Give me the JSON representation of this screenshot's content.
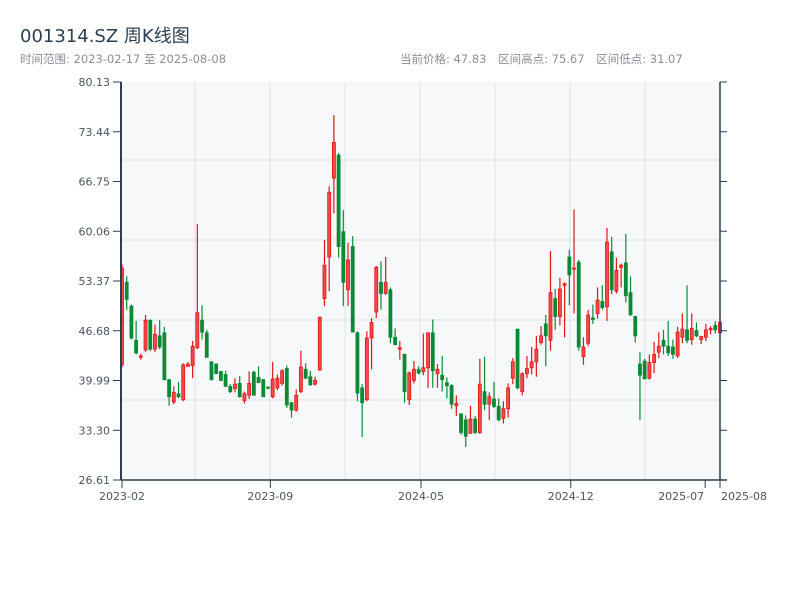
{
  "header": {
    "title": "001314.SZ 周K线图",
    "range_label": "时间范围: 2023-02-17 至 2025-08-08",
    "current_price": "当前价格: 47.83",
    "range_high": "区间高点: 75.67",
    "range_low": "区间低点: 31.07"
  },
  "colors": {
    "up": "#e0161a",
    "up_fill": "#f24a4a",
    "down": "#0b8a36",
    "plot_bg": "#f6f8fa",
    "axis": "#2c3e50",
    "grid": "#dfe3e8"
  },
  "chart_data": {
    "type": "candlestick",
    "title": "001314.SZ 周K线图",
    "period": "weekly",
    "ylim": [
      26.61,
      80.13
    ],
    "y_ticks": [
      "26.61",
      "33.30",
      "39.99",
      "46.68",
      "53.37",
      "60.06",
      "66.75",
      "73.44",
      "80.13"
    ],
    "x_ticks": [
      {
        "label": "2023-02",
        "week": 0
      },
      {
        "label": "2023-09",
        "week": 32
      },
      {
        "label": "2024-05",
        "week": 64.5
      },
      {
        "label": "2024-12",
        "week": 96.8
      },
      {
        "label": "2025-07",
        "week": 125.8
      },
      {
        "label": "2025-08",
        "week": 129
      }
    ],
    "total_weeks": 130,
    "ohlc": [
      [
        42.1,
        55.6,
        41.8,
        55.1
      ],
      [
        53.2,
        54.0,
        49.5,
        50.9
      ],
      [
        50.0,
        50.2,
        45.5,
        45.7
      ],
      [
        45.4,
        48.0,
        43.5,
        43.7
      ],
      [
        43.1,
        43.6,
        42.8,
        43.3
      ],
      [
        44.1,
        48.8,
        43.8,
        48.1
      ],
      [
        48.1,
        48.2,
        44.0,
        44.2
      ],
      [
        44.2,
        47.5,
        43.8,
        46.2
      ],
      [
        46.0,
        48.1,
        44.2,
        44.5
      ],
      [
        46.4,
        47.2,
        40.0,
        40.1
      ],
      [
        40.1,
        40.2,
        36.6,
        37.8
      ],
      [
        37.1,
        39.2,
        36.8,
        38.4
      ],
      [
        38.2,
        39.8,
        37.6,
        37.8
      ],
      [
        37.4,
        42.3,
        37.2,
        42.1
      ],
      [
        41.9,
        42.5,
        41.8,
        42.2
      ],
      [
        42.0,
        45.3,
        40.3,
        44.6
      ],
      [
        44.4,
        61.0,
        44.2,
        49.1
      ],
      [
        48.1,
        50.1,
        45.5,
        46.5
      ],
      [
        46.4,
        46.8,
        43.1,
        43.1
      ],
      [
        42.5,
        42.6,
        40.0,
        40.1
      ],
      [
        42.2,
        42.3,
        40.9,
        40.9
      ],
      [
        41.2,
        41.3,
        39.9,
        40.0
      ],
      [
        40.8,
        41.3,
        39.2,
        39.2
      ],
      [
        39.2,
        39.5,
        38.3,
        38.5
      ],
      [
        38.9,
        40.3,
        38.4,
        39.5
      ],
      [
        39.6,
        40.6,
        37.7,
        37.8
      ],
      [
        37.3,
        38.5,
        36.9,
        38.2
      ],
      [
        38.0,
        41.2,
        37.5,
        39.6
      ],
      [
        41.1,
        41.3,
        38.0,
        38.0
      ],
      [
        40.4,
        41.9,
        39.7,
        39.7
      ],
      [
        40.1,
        40.2,
        37.8,
        37.8
      ],
      [
        39.1,
        39.2,
        38.8,
        39.0
      ],
      [
        37.8,
        42.5,
        37.6,
        40.2
      ],
      [
        39.0,
        40.8,
        38.7,
        40.3
      ],
      [
        39.6,
        41.5,
        39.3,
        41.3
      ],
      [
        41.6,
        42.0,
        36.3,
        36.7
      ],
      [
        37.0,
        37.1,
        35.0,
        36.0
      ],
      [
        36.0,
        38.8,
        35.8,
        38.0
      ],
      [
        38.5,
        44.0,
        38.3,
        41.8
      ],
      [
        41.5,
        42.3,
        40.2,
        40.3
      ],
      [
        40.5,
        41.3,
        39.3,
        39.4
      ],
      [
        39.5,
        40.5,
        39.3,
        40.0
      ],
      [
        41.4,
        48.6,
        41.3,
        48.5
      ],
      [
        51.0,
        58.9,
        50.0,
        55.5
      ],
      [
        56.6,
        66.1,
        52.0,
        65.3
      ],
      [
        67.2,
        75.67,
        62.5,
        72.0
      ],
      [
        70.3,
        70.6,
        56.5,
        58.0
      ],
      [
        60.0,
        62.9,
        50.0,
        53.2
      ],
      [
        52.2,
        58.5,
        50.0,
        56.2
      ],
      [
        58.0,
        59.4,
        46.5,
        46.5
      ],
      [
        46.4,
        46.6,
        37.2,
        38.3
      ],
      [
        39.0,
        39.5,
        32.4,
        37.0
      ],
      [
        37.4,
        46.6,
        37.2,
        45.7
      ],
      [
        45.7,
        48.4,
        41.5,
        47.8
      ],
      [
        49.2,
        55.4,
        48.4,
        55.2
      ],
      [
        53.2,
        56.0,
        49.5,
        51.7
      ],
      [
        51.7,
        56.6,
        51.5,
        53.2
      ],
      [
        52.2,
        52.5,
        45.0,
        45.8
      ],
      [
        45.8,
        47.0,
        44.8,
        44.8
      ],
      [
        44.2,
        45.3,
        42.8,
        44.4
      ],
      [
        43.5,
        43.6,
        37.0,
        38.5
      ],
      [
        37.4,
        41.2,
        36.7,
        41.0
      ],
      [
        40.0,
        42.6,
        39.6,
        41.5
      ],
      [
        41.5,
        41.9,
        40.8,
        41.0
      ],
      [
        41.2,
        46.3,
        40.7,
        41.7
      ],
      [
        41.7,
        46.4,
        39.0,
        46.4
      ],
      [
        46.4,
        48.2,
        39.0,
        41.3
      ],
      [
        40.9,
        42.2,
        39.0,
        41.5
      ],
      [
        40.7,
        43.3,
        38.5,
        40.1
      ],
      [
        39.7,
        40.4,
        37.6,
        39.3
      ],
      [
        39.3,
        39.5,
        36.2,
        36.8
      ],
      [
        36.6,
        38.0,
        35.2,
        36.9
      ],
      [
        35.5,
        35.6,
        32.7,
        33.0
      ],
      [
        34.7,
        35.3,
        31.07,
        32.5
      ],
      [
        32.9,
        36.6,
        32.8,
        34.8
      ],
      [
        34.8,
        35.2,
        32.8,
        33.0
      ],
      [
        33.0,
        42.9,
        32.8,
        39.5
      ],
      [
        38.5,
        43.2,
        36.0,
        36.8
      ],
      [
        36.8,
        38.4,
        34.7,
        37.8
      ],
      [
        37.5,
        39.8,
        36.3,
        36.5
      ],
      [
        36.5,
        37.6,
        34.5,
        34.7
      ],
      [
        34.9,
        37.2,
        34.2,
        36.2
      ],
      [
        36.2,
        39.6,
        35.0,
        39.0
      ],
      [
        40.3,
        43.0,
        39.5,
        42.5
      ],
      [
        46.9,
        46.9,
        38.8,
        39.0
      ],
      [
        38.5,
        41.1,
        38.0,
        40.9
      ],
      [
        40.9,
        43.3,
        40.3,
        41.6
      ],
      [
        41.7,
        44.5,
        40.8,
        42.5
      ],
      [
        42.5,
        46.0,
        40.5,
        44.2
      ],
      [
        45.1,
        47.3,
        44.8,
        46.0
      ],
      [
        47.6,
        48.8,
        41.9,
        46.0
      ],
      [
        45.4,
        57.4,
        44.0,
        51.8
      ],
      [
        51.0,
        52.3,
        46.8,
        48.6
      ],
      [
        48.6,
        53.8,
        47.4,
        52.3
      ],
      [
        52.8,
        53.2,
        45.8,
        53.0
      ],
      [
        56.6,
        57.6,
        50.1,
        54.2
      ],
      [
        55.0,
        63.0,
        49.0,
        55.1
      ],
      [
        55.9,
        56.2,
        44.0,
        44.5
      ],
      [
        43.2,
        45.8,
        42.1,
        44.5
      ],
      [
        45.0,
        49.5,
        44.6,
        48.8
      ],
      [
        48.4,
        50.2,
        47.6,
        48.2
      ],
      [
        49.0,
        52.5,
        48.3,
        50.8
      ],
      [
        50.6,
        52.8,
        49.5,
        49.8
      ],
      [
        49.9,
        60.5,
        48.0,
        58.6
      ],
      [
        57.3,
        59.3,
        51.6,
        52.2
      ],
      [
        52.0,
        56.5,
        51.7,
        54.8
      ],
      [
        55.2,
        55.7,
        52.5,
        55.5
      ],
      [
        55.8,
        59.7,
        50.5,
        51.4
      ],
      [
        51.8,
        54.0,
        48.7,
        48.8
      ],
      [
        48.6,
        48.7,
        45.1,
        46.0
      ],
      [
        42.2,
        43.8,
        34.7,
        40.7
      ],
      [
        42.6,
        42.9,
        40.2,
        40.2
      ],
      [
        40.3,
        43.5,
        40.1,
        42.4
      ],
      [
        42.4,
        45.2,
        41.0,
        43.5
      ],
      [
        43.8,
        46.5,
        43.0,
        44.6
      ],
      [
        45.4,
        46.8,
        43.5,
        44.6
      ],
      [
        44.6,
        48.0,
        43.3,
        43.7
      ],
      [
        44.5,
        45.5,
        42.9,
        43.5
      ],
      [
        43.3,
        47.2,
        43.0,
        46.5
      ],
      [
        45.8,
        49.0,
        45.0,
        46.9
      ],
      [
        46.8,
        52.8,
        45.0,
        45.4
      ],
      [
        45.5,
        49.0,
        44.8,
        47.0
      ],
      [
        46.7,
        47.8,
        45.8,
        46.0
      ],
      [
        45.5,
        46.0,
        44.9,
        45.9
      ],
      [
        45.8,
        47.6,
        45.3,
        46.8
      ],
      [
        46.8,
        47.3,
        46.2,
        47.0
      ],
      [
        47.4,
        48.0,
        46.3,
        46.8
      ],
      [
        46.4,
        48.7,
        46.2,
        47.83
      ]
    ],
    "grid": true,
    "legend": "none"
  }
}
